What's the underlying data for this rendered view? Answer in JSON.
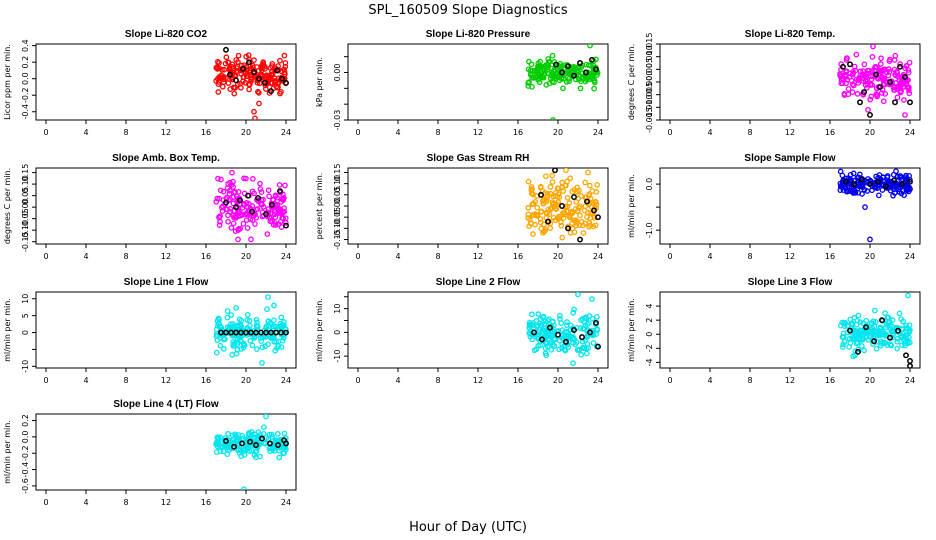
{
  "figure": {
    "title": "SPL_160509  Slope Diagnostics",
    "xlabel": "Hour of Day (UTC)"
  },
  "chart_data": [
    {
      "type": "scatter",
      "title": "Slope Li-820 CO2",
      "ylabel": "Licor ppm per min.",
      "ylim": [
        -0.5,
        0.42
      ],
      "yticks": [
        -0.4,
        -0.2,
        0.0,
        0.2,
        0.4
      ],
      "yticklabels": [
        "-0.4",
        "-0.2",
        "0.0",
        "0.2",
        "0.4"
      ],
      "xlim": [
        -1,
        25
      ],
      "xticks": [
        0,
        4,
        8,
        12,
        16,
        20,
        24
      ],
      "series": [
        {
          "name": "points",
          "color": "#ff0000",
          "x_range": [
            17,
            24
          ],
          "y_center": 0.05,
          "y_spread": 0.1,
          "outliers": [
            [
              21.6,
              0.45
            ],
            [
              20.8,
              -0.4
            ],
            [
              20.9,
              -0.48
            ],
            [
              21.3,
              -0.3
            ]
          ]
        },
        {
          "name": "black",
          "color": "#000000",
          "x": [
            18,
            18.4,
            19,
            19.7,
            20.3,
            20.8,
            21.3,
            21.9,
            22.5,
            23.1,
            23.6,
            24
          ],
          "y": [
            0.35,
            0.05,
            -0.02,
            0.12,
            0.2,
            0.08,
            0.0,
            -0.05,
            -0.15,
            0.1,
            0.0,
            -0.05
          ]
        }
      ]
    },
    {
      "type": "scatter",
      "title": "Slope Li-820 Pressure",
      "ylabel": "kPa per min.",
      "ylim": [
        -0.03,
        0.018
      ],
      "yticks": [
        -0.03,
        -0.02,
        -0.01,
        0.0,
        0.01
      ],
      "yticklabels": [
        "-0.03",
        "",
        "",
        "0.00",
        ""
      ],
      "xlim": [
        -1,
        25
      ],
      "xticks": [
        0,
        4,
        8,
        12,
        16,
        20,
        24
      ],
      "series": [
        {
          "name": "points",
          "color": "#00cc00",
          "x_range": [
            17,
            24
          ],
          "y_center": 0.0,
          "y_spread": 0.004,
          "outliers": [
            [
              19.5,
              -0.03
            ],
            [
              23.2,
              0.017
            ],
            [
              20.5,
              -0.01
            ]
          ]
        },
        {
          "name": "black",
          "color": "#000000",
          "x": [
            19.8,
            20.4,
            21,
            21.6,
            22.2,
            22.8,
            23.4,
            23.8
          ],
          "y": [
            0.005,
            0.0,
            0.004,
            -0.002,
            0.006,
            0.0,
            0.008,
            0.002
          ]
        }
      ]
    },
    {
      "type": "scatter",
      "title": "Slope Li-820 Temp.",
      "ylabel": "degrees C per min.",
      "ylim": [
        -0.015,
        0.015
      ],
      "yticks": [
        -0.015,
        -0.01,
        -0.005,
        0.0,
        0.005,
        0.01,
        0.015
      ],
      "yticklabels": [
        "-0.015",
        "-0.010",
        "-0.005",
        "0.000",
        "0.005",
        "0.010",
        "0.015"
      ],
      "xlim": [
        -1,
        25
      ],
      "xticks": [
        0,
        4,
        8,
        12,
        16,
        20,
        24
      ],
      "series": [
        {
          "name": "points",
          "color": "#ff00ff",
          "x_range": [
            17,
            24
          ],
          "y_center": 0.001,
          "y_spread": 0.004,
          "outliers": [
            [
              20.3,
              0.014
            ],
            [
              23.5,
              -0.013
            ],
            [
              19.8,
              -0.011
            ]
          ]
        },
        {
          "name": "black",
          "color": "#000000",
          "x": [
            17.3,
            18,
            19,
            19.4,
            20,
            20.6,
            21,
            22,
            22.5,
            23,
            23.5,
            24
          ],
          "y": [
            0.006,
            0.007,
            -0.008,
            -0.004,
            -0.013,
            0.003,
            -0.002,
            0.0,
            -0.008,
            0.006,
            0.002,
            -0.008
          ]
        }
      ]
    },
    {
      "type": "scatter",
      "title": "Slope Amb. Box Temp.",
      "ylabel": "degrees C per min.",
      "ylim": [
        -0.16,
        0.17
      ],
      "yticks": [
        -0.15,
        -0.1,
        -0.05,
        0.0,
        0.05,
        0.1,
        0.15
      ],
      "yticklabels": [
        "-0.15",
        "-0.10",
        "-0.05",
        "0.00",
        "0.05",
        "0.10",
        "0.15"
      ],
      "xlim": [
        -1,
        25
      ],
      "xticks": [
        0,
        4,
        8,
        12,
        16,
        20,
        24
      ],
      "series": [
        {
          "name": "points",
          "color": "#ff00ff",
          "x_range": [
            17,
            24
          ],
          "y_center": 0.0,
          "y_spread": 0.05,
          "outliers": [
            [
              18.6,
              0.15
            ],
            [
              19.2,
              -0.14
            ],
            [
              20.5,
              -0.14
            ],
            [
              17.5,
              0.12
            ]
          ]
        },
        {
          "name": "black",
          "color": "#000000",
          "x": [
            18,
            19,
            19.4,
            20.2,
            20.6,
            21.2,
            22,
            22.6,
            23.4,
            24
          ],
          "y": [
            0.02,
            0.0,
            0.03,
            0.05,
            -0.02,
            0.04,
            -0.03,
            0.01,
            0.07,
            -0.08
          ]
        }
      ]
    },
    {
      "type": "scatter",
      "title": "Slope Gas Stream RH",
      "ylabel": "percent per min.",
      "ylim": [
        -0.17,
        0.17
      ],
      "yticks": [
        -0.15,
        -0.1,
        -0.05,
        0.0,
        0.05,
        0.1,
        0.15
      ],
      "yticklabels": [
        "-0.15",
        "-0.10",
        "-0.05",
        "0.00",
        "0.05",
        "0.10",
        "0.15"
      ],
      "xlim": [
        -1,
        25
      ],
      "xticks": [
        0,
        4,
        8,
        12,
        16,
        20,
        24
      ],
      "series": [
        {
          "name": "points",
          "color": "#ffa500",
          "x_range": [
            17,
            24
          ],
          "y_center": 0.0,
          "y_spread": 0.06,
          "outliers": [
            [
              20.8,
              0.16
            ],
            [
              23,
              0.15
            ],
            [
              18.5,
              -0.12
            ]
          ]
        },
        {
          "name": "black",
          "color": "#000000",
          "x": [
            18.3,
            19,
            19.7,
            20.4,
            21,
            21.6,
            22.2,
            22.9,
            23.6,
            24
          ],
          "y": [
            0.05,
            -0.07,
            0.16,
            0.0,
            -0.1,
            0.04,
            -0.15,
            0.02,
            -0.02,
            -0.05
          ]
        }
      ]
    },
    {
      "type": "scatter",
      "title": "Slope Sample Flow",
      "ylabel": "ml/min per min.",
      "ylim": [
        -1.3,
        0.35
      ],
      "yticks": [
        -1.0,
        -0.5,
        0.0
      ],
      "yticklabels": [
        "-1.0",
        "",
        "0.0"
      ],
      "xlim": [
        -1,
        25
      ],
      "xticks": [
        0,
        4,
        8,
        12,
        16,
        20,
        24
      ],
      "series": [
        {
          "name": "points",
          "color": "#0000ee",
          "x_range": [
            17,
            24
          ],
          "y_center": 0.0,
          "y_spread": 0.12,
          "outliers": [
            [
              20,
              -1.2
            ],
            [
              19.5,
              -0.5
            ],
            [
              22.6,
              0.28
            ]
          ]
        },
        {
          "name": "black",
          "color": "#000000",
          "x": [
            17.6,
            18.4,
            19.2,
            20,
            20.8,
            21.6,
            22.4,
            23.2,
            24
          ],
          "y": [
            0.05,
            0.0,
            0.1,
            0.0,
            0.05,
            -0.05,
            0.08,
            0.0,
            0.05
          ]
        }
      ]
    },
    {
      "type": "scatter",
      "title": "Slope Line 1 Flow",
      "ylabel": "ml/min per min.",
      "ylim": [
        -10.5,
        12
      ],
      "yticks": [
        -10,
        -5,
        0,
        5,
        10
      ],
      "yticklabels": [
        "-10",
        "",
        "0",
        "5",
        "10"
      ],
      "xlim": [
        -1,
        25
      ],
      "xticks": [
        0,
        4,
        8,
        12,
        16,
        20,
        24
      ],
      "series": [
        {
          "name": "points",
          "color": "#00e5ee",
          "x_range": [
            17,
            24
          ],
          "y_center": 0.0,
          "y_spread": 2.5,
          "outliers": [
            [
              22.2,
              10.5
            ],
            [
              21.6,
              -9
            ],
            [
              22.8,
              8
            ]
          ]
        },
        {
          "name": "black",
          "color": "#000000",
          "x": [
            17.5,
            18,
            18.5,
            19,
            19.5,
            20,
            20.5,
            21,
            21.5,
            22,
            22.5,
            23,
            23.5,
            24
          ],
          "y": [
            0,
            0,
            0,
            0,
            0,
            0,
            0,
            0,
            0,
            0,
            0,
            0,
            0,
            0
          ]
        }
      ]
    },
    {
      "type": "scatter",
      "title": "Slope Line 2 Flow",
      "ylabel": "ml/min per min.",
      "ylim": [
        -15,
        17
      ],
      "yticks": [
        -10,
        -5,
        0,
        5,
        10,
        15
      ],
      "yticklabels": [
        "-10",
        "",
        "0",
        "",
        "10",
        ""
      ],
      "xlim": [
        -1,
        25
      ],
      "xticks": [
        0,
        4,
        8,
        12,
        16,
        20,
        24
      ],
      "series": [
        {
          "name": "points",
          "color": "#00e5ee",
          "x_range": [
            17,
            24
          ],
          "y_center": 0.0,
          "y_spread": 4,
          "outliers": [
            [
              22,
              16
            ],
            [
              21.5,
              -13
            ],
            [
              23.4,
              14
            ]
          ]
        },
        {
          "name": "black",
          "color": "#000000",
          "x": [
            17.6,
            18.4,
            19.2,
            20,
            20.8,
            21.6,
            22.4,
            23.2,
            23.8,
            24
          ],
          "y": [
            0,
            -3,
            2,
            -1,
            -4,
            1,
            -2,
            0,
            4,
            -6
          ]
        }
      ]
    },
    {
      "type": "scatter",
      "title": "Slope Line 3 Flow",
      "ylabel": "ml/min per min.",
      "ylim": [
        -4.8,
        6
      ],
      "yticks": [
        -4,
        -2,
        0,
        2,
        4
      ],
      "yticklabels": [
        "-4",
        "-2",
        "0",
        "2",
        "4"
      ],
      "xlim": [
        -1,
        25
      ],
      "xticks": [
        0,
        4,
        8,
        12,
        16,
        20,
        24
      ],
      "series": [
        {
          "name": "points",
          "color": "#00e5ee",
          "x_range": [
            17,
            24
          ],
          "y_center": 0.0,
          "y_spread": 1.2,
          "outliers": [
            [
              23.8,
              5.5
            ],
            [
              21.5,
              3
            ],
            [
              18.5,
              -3
            ]
          ]
        },
        {
          "name": "black",
          "color": "#000000",
          "x": [
            18,
            18.8,
            19.6,
            20.4,
            21.2,
            22,
            22.8,
            23.6,
            24,
            24
          ],
          "y": [
            0.5,
            -2.5,
            1,
            -1,
            2,
            -0.5,
            0.5,
            -3,
            -3.8,
            -4.5
          ]
        }
      ]
    },
    {
      "type": "scatter",
      "title": "Slope Line 4 (LT) Flow",
      "ylabel": "ml/min per min.",
      "ylim": [
        -0.65,
        0.28
      ],
      "yticks": [
        -0.6,
        -0.4,
        -0.2,
        0.0,
        0.2
      ],
      "yticklabels": [
        "-0.6",
        "-0.4",
        "-0.2",
        "0.0",
        "0.2"
      ],
      "xlim": [
        -1,
        25
      ],
      "xticks": [
        0,
        4,
        8,
        12,
        16,
        20,
        24
      ],
      "series": [
        {
          "name": "points",
          "color": "#00e5ee",
          "x_range": [
            17,
            24
          ],
          "y_center": -0.08,
          "y_spread": 0.07,
          "outliers": [
            [
              19.8,
              -0.64
            ],
            [
              22,
              0.25
            ],
            [
              21,
              -0.25
            ]
          ]
        },
        {
          "name": "black",
          "color": "#000000",
          "x": [
            18,
            18.8,
            19.6,
            20.4,
            21,
            21.6,
            22.4,
            23.2,
            23.8,
            24
          ],
          "y": [
            -0.05,
            -0.12,
            -0.08,
            -0.06,
            -0.1,
            -0.02,
            -0.08,
            -0.1,
            -0.04,
            -0.08
          ]
        }
      ]
    }
  ]
}
